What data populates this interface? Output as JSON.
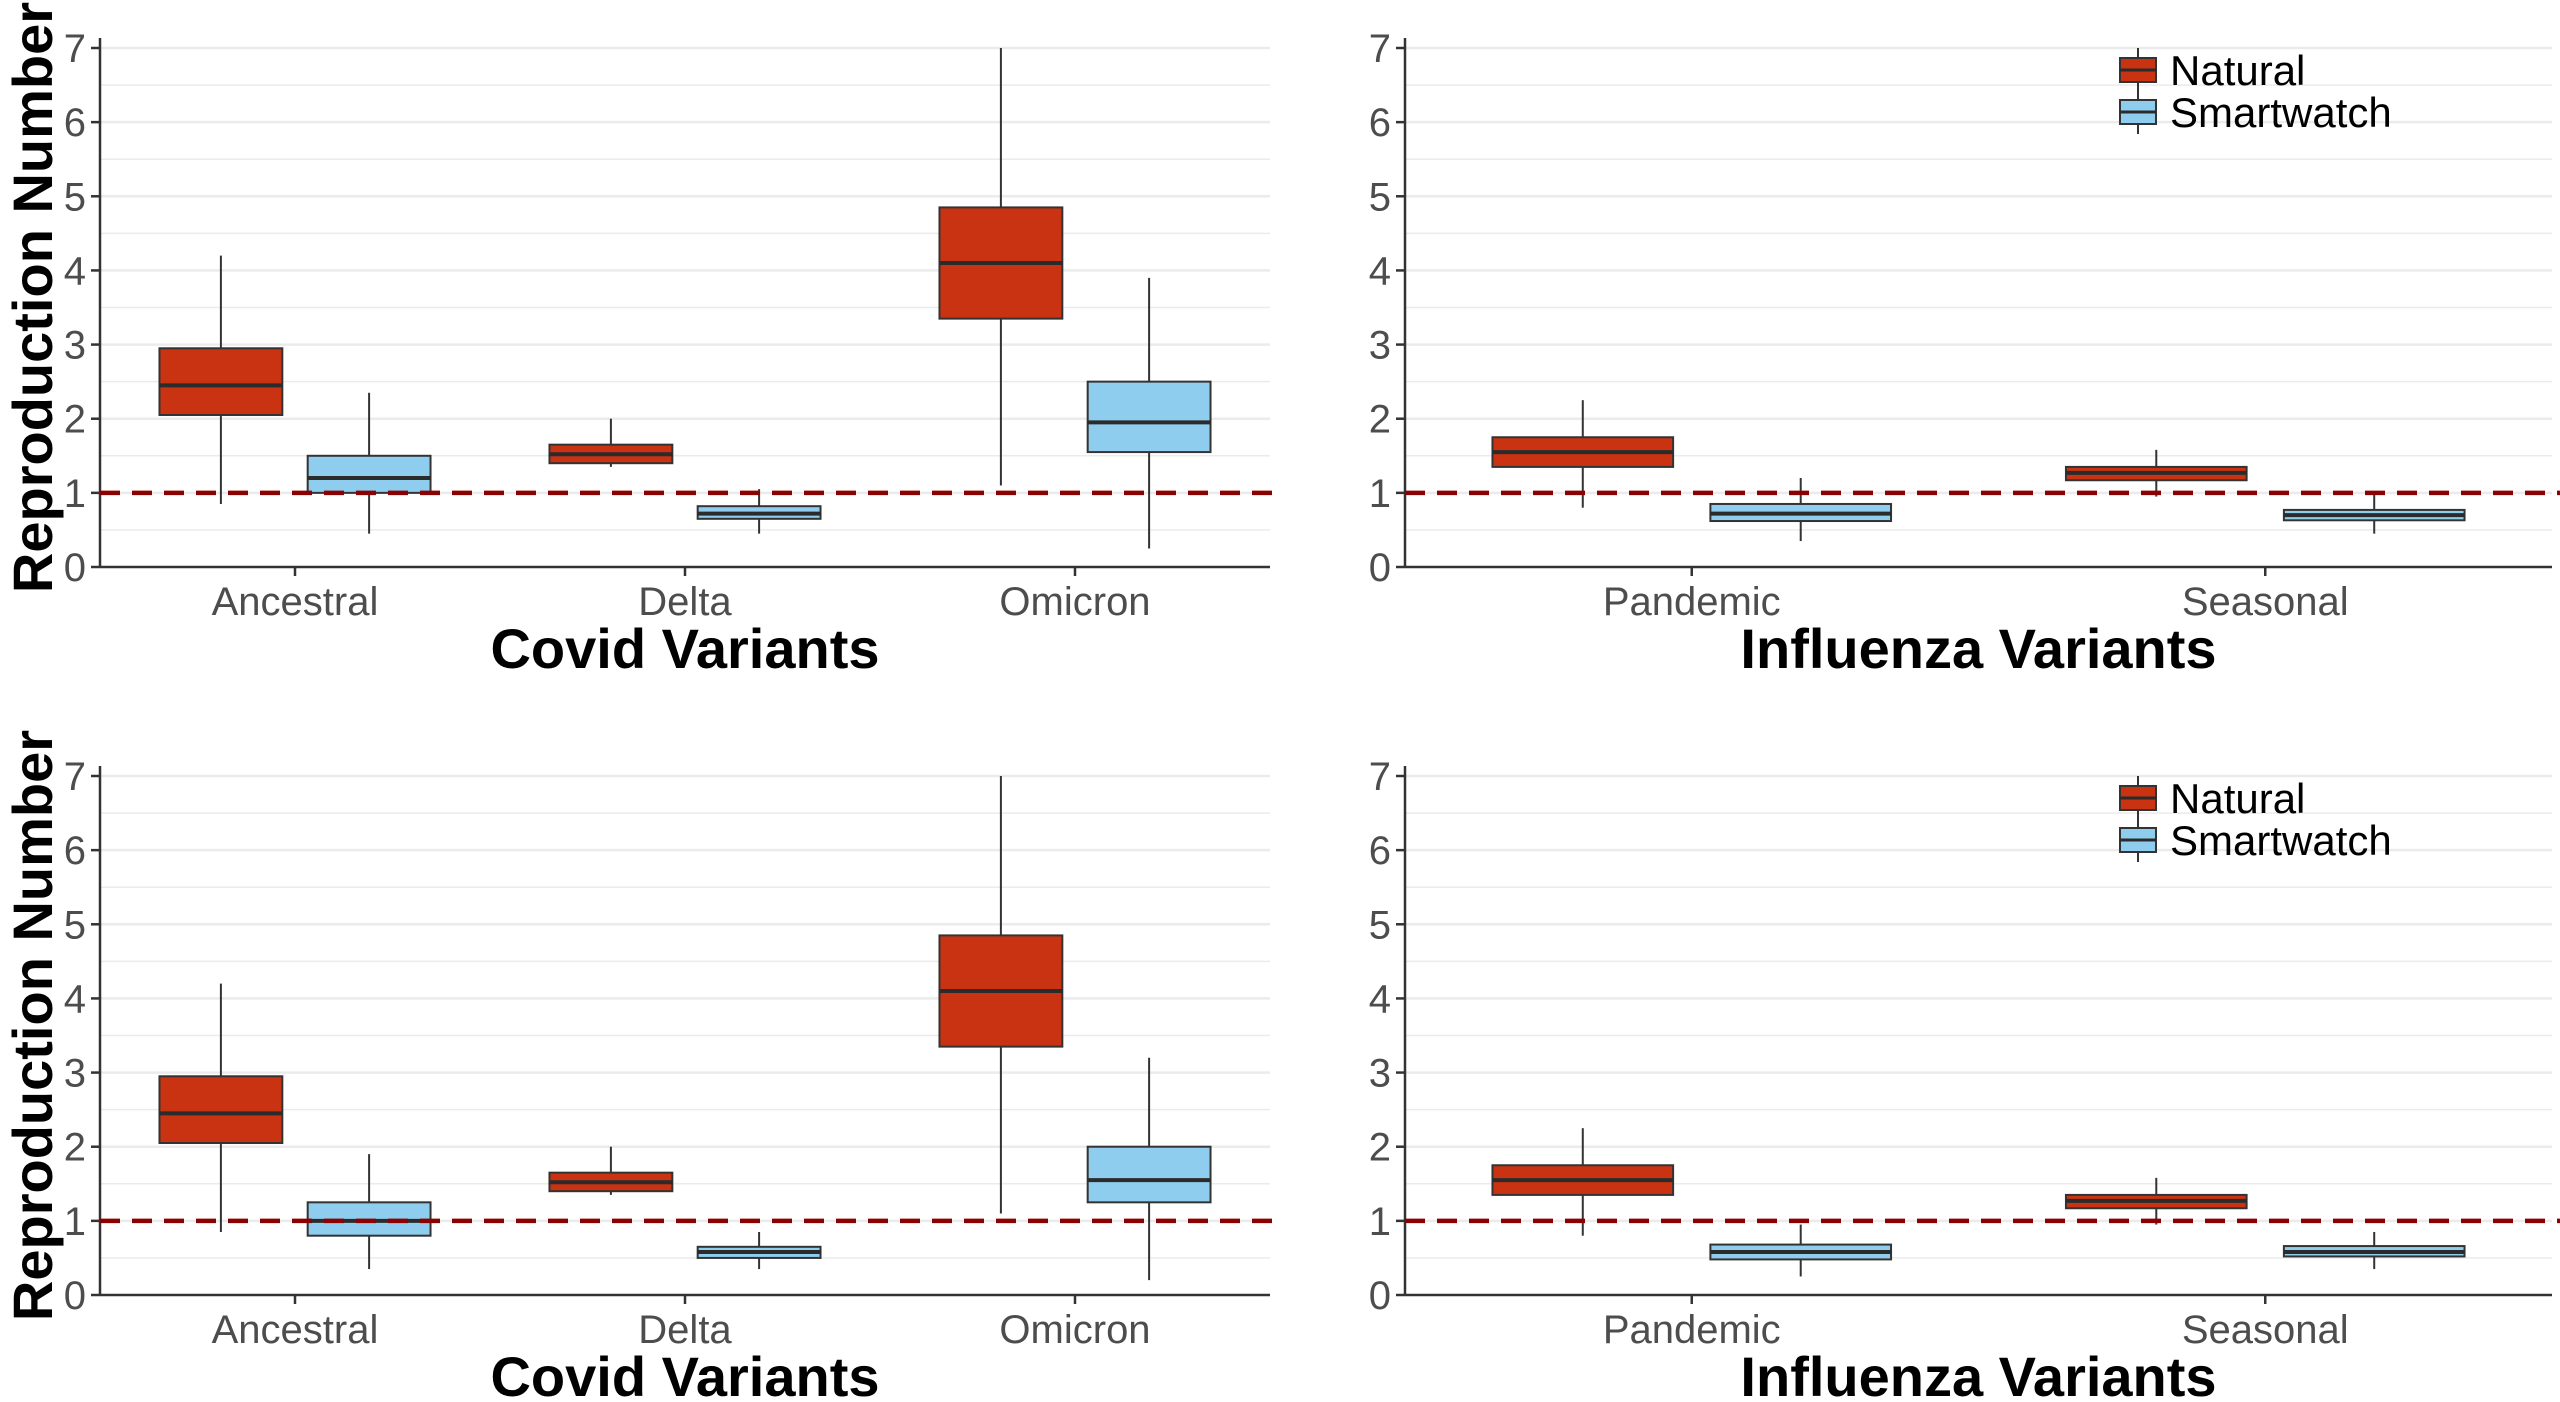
{
  "colors": {
    "natural": "#c93312",
    "smartwatch": "#8fcdee",
    "reference_line": "#8b0000",
    "grid": "#ebebeb",
    "axis": "#333333"
  },
  "legend": {
    "natural": "Natural",
    "smartwatch": "Smartwatch"
  },
  "chart_data": [
    {
      "type": "boxplot",
      "position": "top-left",
      "xlabel": "Covid Variants",
      "ylabel": "Reproduction Number",
      "ylim": [
        0,
        7
      ],
      "yticks": [
        0,
        1,
        2,
        3,
        4,
        5,
        6,
        7
      ],
      "reference_line": 1,
      "legend": false,
      "categories": [
        "Ancestral",
        "Delta",
        "Omicron"
      ],
      "series": [
        {
          "name": "Natural",
          "boxes": [
            {
              "min": 0.85,
              "q1": 2.05,
              "median": 2.45,
              "q3": 2.95,
              "max": 4.2
            },
            {
              "min": 1.35,
              "q1": 1.4,
              "median": 1.52,
              "q3": 1.65,
              "max": 2.0
            },
            {
              "min": 1.1,
              "q1": 3.35,
              "median": 4.1,
              "q3": 4.85,
              "max": 7.0
            }
          ]
        },
        {
          "name": "Smartwatch",
          "boxes": [
            {
              "min": 0.45,
              "q1": 1.0,
              "median": 1.2,
              "q3": 1.5,
              "max": 2.35
            },
            {
              "min": 0.45,
              "q1": 0.65,
              "median": 0.72,
              "q3": 0.82,
              "max": 1.05
            },
            {
              "min": 0.25,
              "q1": 1.55,
              "median": 1.95,
              "q3": 2.5,
              "max": 3.9
            }
          ]
        }
      ]
    },
    {
      "type": "boxplot",
      "position": "top-right",
      "xlabel": "Influenza Variants",
      "ylim": [
        0,
        7
      ],
      "yticks": [
        0,
        1,
        2,
        3,
        4,
        5,
        6,
        7
      ],
      "reference_line": 1,
      "legend": true,
      "categories": [
        "Pandemic",
        "Seasonal"
      ],
      "series": [
        {
          "name": "Natural",
          "boxes": [
            {
              "min": 0.8,
              "q1": 1.35,
              "median": 1.55,
              "q3": 1.75,
              "max": 2.25
            },
            {
              "min": 0.95,
              "q1": 1.17,
              "median": 1.27,
              "q3": 1.35,
              "max": 1.58
            }
          ]
        },
        {
          "name": "Smartwatch",
          "boxes": [
            {
              "min": 0.35,
              "q1": 0.62,
              "median": 0.72,
              "q3": 0.85,
              "max": 1.2
            },
            {
              "min": 0.45,
              "q1": 0.63,
              "median": 0.7,
              "q3": 0.77,
              "max": 1.0
            }
          ]
        }
      ]
    },
    {
      "type": "boxplot",
      "position": "bottom-left",
      "xlabel": "Covid Variants",
      "ylabel": "Reproduction Number",
      "ylim": [
        0,
        7
      ],
      "yticks": [
        0,
        1,
        2,
        3,
        4,
        5,
        6,
        7
      ],
      "reference_line": 1,
      "legend": false,
      "categories": [
        "Ancestral",
        "Delta",
        "Omicron"
      ],
      "series": [
        {
          "name": "Natural",
          "boxes": [
            {
              "min": 0.85,
              "q1": 2.05,
              "median": 2.45,
              "q3": 2.95,
              "max": 4.2
            },
            {
              "min": 1.35,
              "q1": 1.4,
              "median": 1.52,
              "q3": 1.65,
              "max": 2.0
            },
            {
              "min": 1.1,
              "q1": 3.35,
              "median": 4.1,
              "q3": 4.85,
              "max": 7.0
            }
          ]
        },
        {
          "name": "Smartwatch",
          "boxes": [
            {
              "min": 0.35,
              "q1": 0.8,
              "median": 1.0,
              "q3": 1.25,
              "max": 1.9
            },
            {
              "min": 0.35,
              "q1": 0.5,
              "median": 0.58,
              "q3": 0.65,
              "max": 0.85
            },
            {
              "min": 0.2,
              "q1": 1.25,
              "median": 1.55,
              "q3": 2.0,
              "max": 3.2
            }
          ]
        }
      ]
    },
    {
      "type": "boxplot",
      "position": "bottom-right",
      "xlabel": "Influenza Variants",
      "ylim": [
        0,
        7
      ],
      "yticks": [
        0,
        1,
        2,
        3,
        4,
        5,
        6,
        7
      ],
      "reference_line": 1,
      "legend": true,
      "categories": [
        "Pandemic",
        "Seasonal"
      ],
      "series": [
        {
          "name": "Natural",
          "boxes": [
            {
              "min": 0.8,
              "q1": 1.35,
              "median": 1.55,
              "q3": 1.75,
              "max": 2.25
            },
            {
              "min": 0.95,
              "q1": 1.17,
              "median": 1.27,
              "q3": 1.35,
              "max": 1.58
            }
          ]
        },
        {
          "name": "Smartwatch",
          "boxes": [
            {
              "min": 0.25,
              "q1": 0.48,
              "median": 0.58,
              "q3": 0.68,
              "max": 0.95
            },
            {
              "min": 0.35,
              "q1": 0.52,
              "median": 0.58,
              "q3": 0.66,
              "max": 0.85
            }
          ]
        }
      ]
    }
  ]
}
